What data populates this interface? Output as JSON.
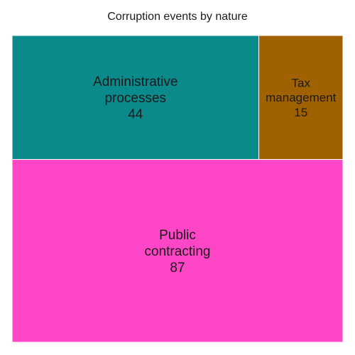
{
  "chart_data": {
    "type": "treemap",
    "title": "Corruption events by nature",
    "items": [
      {
        "name": "Public contracting",
        "label_lines": [
          "Public",
          "contracting"
        ],
        "value": 87,
        "color": "#ff46c6"
      },
      {
        "name": "Administrative processes",
        "label_lines": [
          "Administrative",
          "processes"
        ],
        "value": 44,
        "color": "#0b8a8b"
      },
      {
        "name": "Tax management",
        "label_lines": [
          "Tax",
          "management"
        ],
        "value": 15,
        "color": "#a06200"
      }
    ]
  }
}
